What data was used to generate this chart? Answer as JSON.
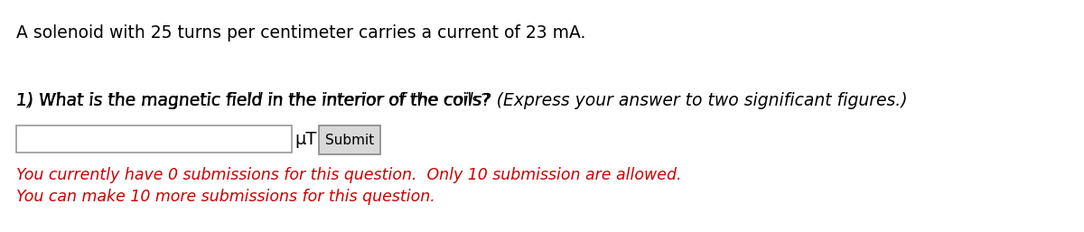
{
  "bg_color": "#ffffff",
  "line1": "A solenoid with 25 turns per centimeter carries a current of 23 mA.",
  "line2_normal": "1) What is the magnetic field in the interior of the coils? ",
  "line2_italic": "(Express your answer to two significant figures.)",
  "unit_label": "μT",
  "submit_label": "Submit",
  "red_line1": "You currently have 0 submissions for this question.  Only 10 submission are allowed.",
  "red_line2": "You can make 10 more submissions for this question.",
  "red_color": "#cc0000",
  "text_color": "#000000",
  "fontsize_main": 13.5,
  "fontsize_red": 12.5,
  "fontsize_unit": 14,
  "fontsize_submit": 11
}
